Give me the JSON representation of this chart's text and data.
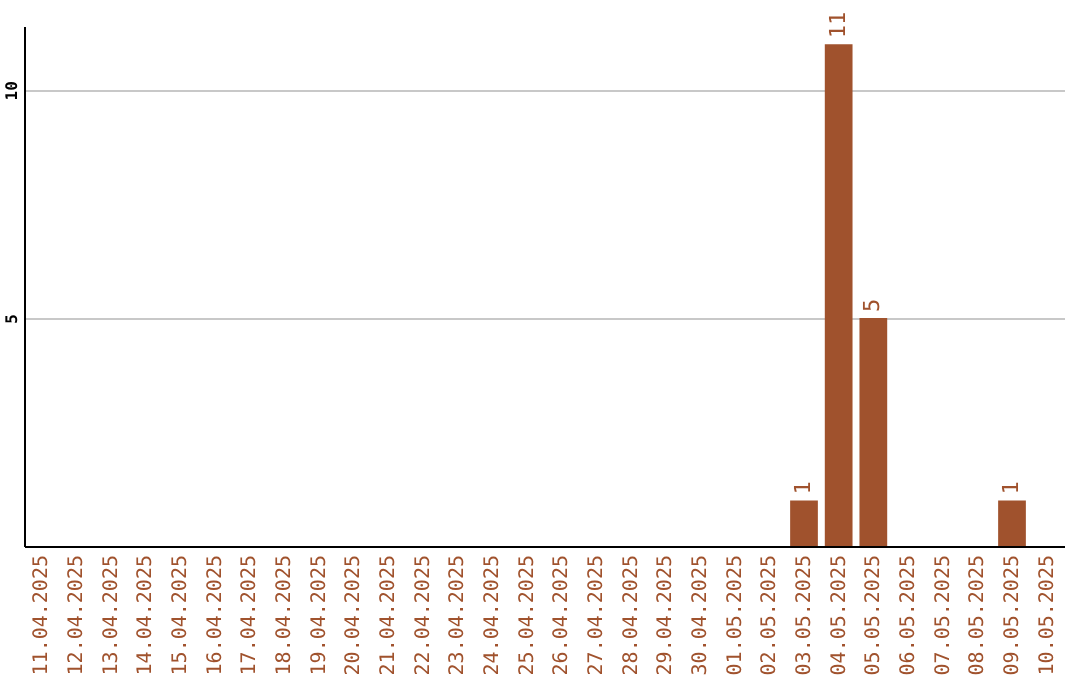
{
  "chart_data": {
    "type": "bar",
    "categories": [
      "11.04.2025",
      "12.04.2025",
      "13.04.2025",
      "14.04.2025",
      "15.04.2025",
      "16.04.2025",
      "17.04.2025",
      "18.04.2025",
      "19.04.2025",
      "20.04.2025",
      "21.04.2025",
      "22.04.2025",
      "23.04.2025",
      "24.04.2025",
      "25.04.2025",
      "26.04.2025",
      "27.04.2025",
      "28.04.2025",
      "29.04.2025",
      "30.04.2025",
      "01.05.2025",
      "02.05.2025",
      "03.05.2025",
      "04.05.2025",
      "05.05.2025",
      "06.05.2025",
      "07.05.2025",
      "08.05.2025",
      "09.05.2025",
      "10.05.2025"
    ],
    "values": [
      0,
      0,
      0,
      0,
      0,
      0,
      0,
      0,
      0,
      0,
      0,
      0,
      0,
      0,
      0,
      0,
      0,
      0,
      0,
      0,
      0,
      0,
      1,
      11,
      5,
      0,
      0,
      0,
      1,
      0
    ],
    "value_labels": [
      null,
      null,
      null,
      null,
      null,
      null,
      null,
      null,
      null,
      null,
      null,
      null,
      null,
      null,
      null,
      null,
      null,
      null,
      null,
      null,
      null,
      null,
      "1",
      "11",
      "5",
      null,
      null,
      null,
      "1",
      null
    ],
    "color": "#a0522d",
    "ylim": [
      0,
      11.4
    ],
    "yticks": [
      5,
      10
    ],
    "grid": "y"
  }
}
